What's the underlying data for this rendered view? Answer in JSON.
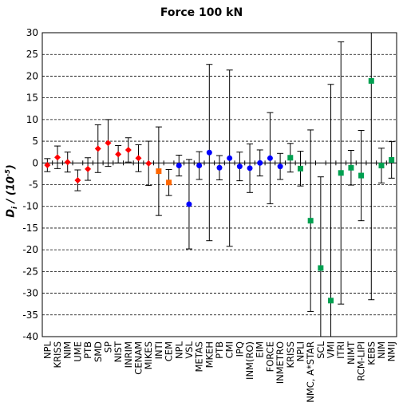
{
  "chart_data": {
    "type": "scatter",
    "title": "Force 100 kN",
    "ylabel": "D_i / (10⁻⁵)",
    "ylim": [
      -40,
      30
    ],
    "yticks": [
      -40,
      -35,
      -30,
      -25,
      -20,
      -15,
      -10,
      -5,
      0,
      5,
      10,
      15,
      20,
      25,
      30
    ],
    "grid": "horizontal dashed",
    "legend": "none",
    "series_colors": {
      "red": "#ff0000",
      "orange": "#ff6600",
      "blue": "#0000ff",
      "green": "#00a050"
    },
    "points": [
      {
        "label": "NPL",
        "y": -0.5,
        "err": 1.5,
        "color": "#ff0000",
        "marker": "diamond"
      },
      {
        "label": "KRISS",
        "y": 1.3,
        "err": 2.6,
        "color": "#ff0000",
        "marker": "diamond"
      },
      {
        "label": "NIM",
        "y": 0.2,
        "err": 2.3,
        "color": "#ff0000",
        "marker": "diamond"
      },
      {
        "label": "UME",
        "y": -4.0,
        "err": 2.4,
        "color": "#ff0000",
        "marker": "diamond"
      },
      {
        "label": "PTB",
        "y": -1.4,
        "err": 2.6,
        "color": "#ff0000",
        "marker": "diamond"
      },
      {
        "label": "SMD",
        "y": 3.3,
        "err": 5.5,
        "color": "#ff0000",
        "marker": "diamond"
      },
      {
        "label": "SP",
        "y": 4.6,
        "err": 5.4,
        "color": "#ff0000",
        "marker": "diamond"
      },
      {
        "label": "NIST",
        "y": 2.0,
        "err": 2.0,
        "color": "#ff0000",
        "marker": "diamond"
      },
      {
        "label": "INRIM",
        "y": 3.0,
        "err": 2.8,
        "color": "#ff0000",
        "marker": "diamond"
      },
      {
        "label": "CENAM",
        "y": 1.1,
        "err": 3.1,
        "color": "#ff0000",
        "marker": "diamond"
      },
      {
        "label": "MIKES",
        "y": -0.1,
        "err": 5.1,
        "color": "#ff0000",
        "marker": "diamond"
      },
      {
        "label": "INTI",
        "y": -1.9,
        "err": 10.2,
        "color": "#ff6600",
        "marker": "square"
      },
      {
        "label": "CEM",
        "y": -4.5,
        "err": 3.0,
        "color": "#ff6600",
        "marker": "square"
      },
      {
        "label": "NPL",
        "y": -0.6,
        "err": 2.4,
        "color": "#0000ff",
        "marker": "circle"
      },
      {
        "label": "VSL",
        "y": -9.5,
        "err": 10.3,
        "color": "#0000ff",
        "marker": "circle"
      },
      {
        "label": "METAS",
        "y": -0.6,
        "err": 3.2,
        "color": "#0000ff",
        "marker": "circle"
      },
      {
        "label": "MKEH",
        "y": 2.4,
        "err": 20.3,
        "color": "#0000ff",
        "marker": "circle"
      },
      {
        "label": "PTB",
        "y": -1.1,
        "err": 2.8,
        "color": "#0000ff",
        "marker": "circle"
      },
      {
        "label": "CMI",
        "y": 1.1,
        "err": 20.3,
        "color": "#0000ff",
        "marker": "circle"
      },
      {
        "label": "IPQ",
        "y": -0.8,
        "err": 3.3,
        "color": "#0000ff",
        "marker": "circle"
      },
      {
        "label": "INM(RO)",
        "y": -1.2,
        "err": 5.6,
        "color": "#0000ff",
        "marker": "circle"
      },
      {
        "label": "EIM",
        "y": 0.0,
        "err": 3.0,
        "color": "#0000ff",
        "marker": "circle"
      },
      {
        "label": "FORCE",
        "y": 1.1,
        "err": 10.5,
        "color": "#0000ff",
        "marker": "circle"
      },
      {
        "label": "INMETRO",
        "y": -0.8,
        "err": 3.0,
        "color": "#0000ff",
        "marker": "circle"
      },
      {
        "label": "KRISS",
        "y": 1.2,
        "err": 3.3,
        "color": "#00a050",
        "marker": "square"
      },
      {
        "label": "NPLI",
        "y": -1.3,
        "err": 4.0,
        "color": "#00a050",
        "marker": "square"
      },
      {
        "label": "NMC, A*STAR",
        "y": -13.3,
        "err": 20.9,
        "color": "#00a050",
        "marker": "square"
      },
      {
        "label": "SCL",
        "y": -24.2,
        "err": 21.0,
        "color": "#00a050",
        "marker": "square"
      },
      {
        "label": "VMI",
        "y": -31.7,
        "err": 49.8,
        "color": "#00a050",
        "marker": "square"
      },
      {
        "label": "ITRI",
        "y": -2.3,
        "err": 30.2,
        "color": "#00a050",
        "marker": "square"
      },
      {
        "label": "NIMT",
        "y": -1.1,
        "err": 4.0,
        "color": "#00a050",
        "marker": "square"
      },
      {
        "label": "RCM-LIPI",
        "y": -2.9,
        "err": 10.4,
        "color": "#00a050",
        "marker": "square"
      },
      {
        "label": "KEBS",
        "y": 18.9,
        "err": 50.4,
        "color": "#00a050",
        "marker": "square"
      },
      {
        "label": "NIM",
        "y": -0.6,
        "err": 4.0,
        "color": "#00a050",
        "marker": "square"
      },
      {
        "label": "NMIJ",
        "y": 0.7,
        "err": 4.2,
        "color": "#00a050",
        "marker": "square"
      }
    ]
  }
}
